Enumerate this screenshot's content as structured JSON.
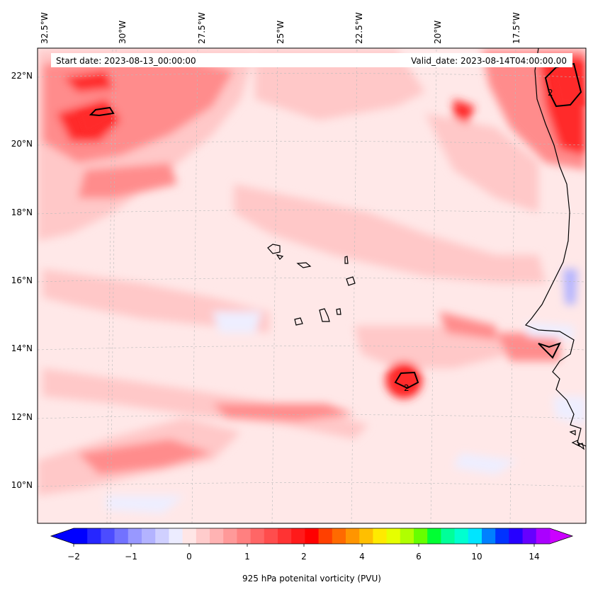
{
  "map": {
    "start_text": "Start date: 2023-08-13_00:00:00",
    "valid_text": "Valid_date: 2023-08-14T04:00:00.00",
    "lon_labels": [
      "32.5°W",
      "30°W",
      "27.5°W",
      "25°W",
      "22.5°W",
      "20°W",
      "17.5°W"
    ],
    "lat_labels": [
      "22°N",
      "20°N",
      "18°N",
      "16°N",
      "14°N",
      "12°N",
      "10°N"
    ],
    "colors": {
      "ocean_base": "#ffe8e8",
      "pv_light": "#ffc8c8",
      "pv_mid": "#ff8c8c",
      "pv_strong": "#ff2a2a",
      "pv_neg_light": "#eeeeff",
      "pv_neg_mid": "#b4b4ff",
      "pv_neg_strong": "#6a6aff",
      "coast": "#000000",
      "grid": "#bbbbbb"
    },
    "contour_label": "2"
  },
  "colorbar": {
    "label": "925 hPa potenital vorticity (PVU)",
    "tick_labels": [
      "−2",
      "−1",
      "0",
      "1",
      "2",
      "4",
      "6",
      "10",
      "14"
    ],
    "colors": [
      "#0000ff",
      "#2626ff",
      "#4c4cff",
      "#7272ff",
      "#9898ff",
      "#b3b3ff",
      "#d0d0ff",
      "#ececff",
      "#ffe6e6",
      "#ffcccc",
      "#ffb3b3",
      "#ff9999",
      "#ff8080",
      "#ff6666",
      "#ff4d4d",
      "#ff3333",
      "#ff1a1a",
      "#ff0000",
      "#ff4000",
      "#ff6a00",
      "#ff9500",
      "#ffbf00",
      "#ffea00",
      "#e6ff00",
      "#b0ff00",
      "#66ff00",
      "#00ff33",
      "#00ff99",
      "#00ffd0",
      "#00e5ff",
      "#0080ff",
      "#0033ff",
      "#2600ff",
      "#6600ff",
      "#aa00ff"
    ],
    "under_color": "#0000ff",
    "over_color": "#cc00ff"
  }
}
